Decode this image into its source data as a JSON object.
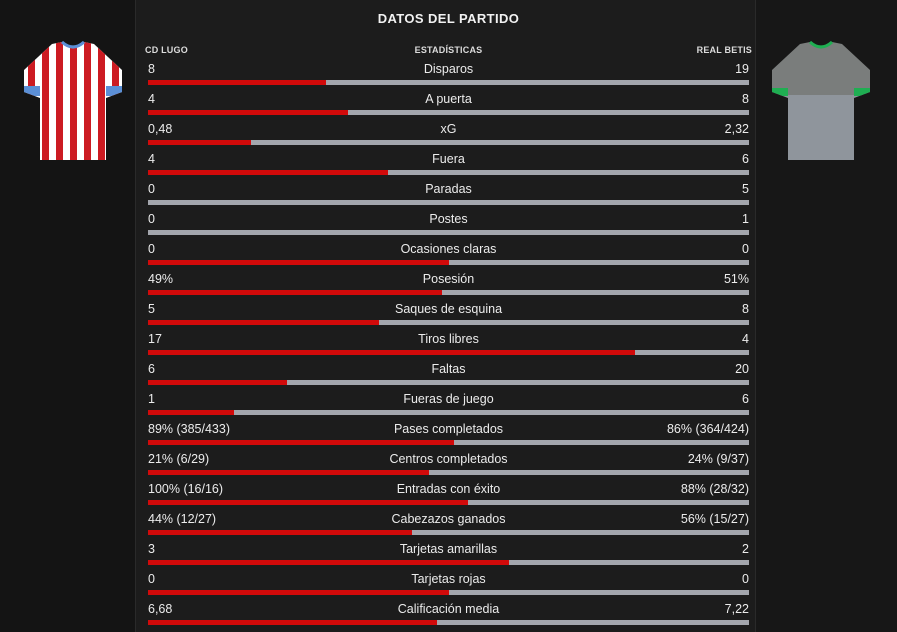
{
  "title": "DATOS DEL PARTIDO",
  "header": {
    "home_team": "CD LUGO",
    "center": "ESTADÍSTICAS",
    "away_team": "REAL BETIS"
  },
  "colors": {
    "home_bar": "#d10a0a",
    "away_bar": "#a3a6ad",
    "home_kit_primary": "#cc1b22",
    "home_kit_secondary": "#ffffff",
    "home_kit_trim": "#5b8fd6",
    "away_kit_primary": "#7a7d7c",
    "away_kit_secondary": "#8f959c",
    "away_kit_trim": "#1fae52"
  },
  "stats": [
    {
      "label": "Disparos",
      "home": "8",
      "away": "19",
      "home_share": 0.296
    },
    {
      "label": "A puerta",
      "home": "4",
      "away": "8",
      "home_share": 0.333
    },
    {
      "label": "xG",
      "home": "0,48",
      "away": "2,32",
      "home_share": 0.171
    },
    {
      "label": "Fuera",
      "home": "4",
      "away": "6",
      "home_share": 0.4
    },
    {
      "label": "Paradas",
      "home": "0",
      "away": "5",
      "home_share": 0.0
    },
    {
      "label": "Postes",
      "home": "0",
      "away": "1",
      "home_share": 0.0
    },
    {
      "label": "Ocasiones claras",
      "home": "0",
      "away": "0",
      "home_share": 0.5
    },
    {
      "label": "Posesión",
      "home": "49%",
      "away": "51%",
      "home_share": 0.49
    },
    {
      "label": "Saques de esquina",
      "home": "5",
      "away": "8",
      "home_share": 0.385
    },
    {
      "label": "Tiros libres",
      "home": "17",
      "away": "4",
      "home_share": 0.81
    },
    {
      "label": "Faltas",
      "home": "6",
      "away": "20",
      "home_share": 0.231
    },
    {
      "label": "Fueras de juego",
      "home": "1",
      "away": "6",
      "home_share": 0.143
    },
    {
      "label": "Pases completados",
      "home": "89% (385/433)",
      "away": "86% (364/424)",
      "home_share": 0.509
    },
    {
      "label": "Centros completados",
      "home": "21% (6/29)",
      "away": "24% (9/37)",
      "home_share": 0.467
    },
    {
      "label": "Entradas con éxito",
      "home": "100% (16/16)",
      "away": "88% (28/32)",
      "home_share": 0.532
    },
    {
      "label": "Cabezazos ganados",
      "home": "44% (12/27)",
      "away": "56% (15/27)",
      "home_share": 0.44
    },
    {
      "label": "Tarjetas amarillas",
      "home": "3",
      "away": "2",
      "home_share": 0.6
    },
    {
      "label": "Tarjetas rojas",
      "home": "0",
      "away": "0",
      "home_share": 0.5
    },
    {
      "label": "Calificación media",
      "home": "6,68",
      "away": "7,22",
      "home_share": 0.481
    }
  ]
}
